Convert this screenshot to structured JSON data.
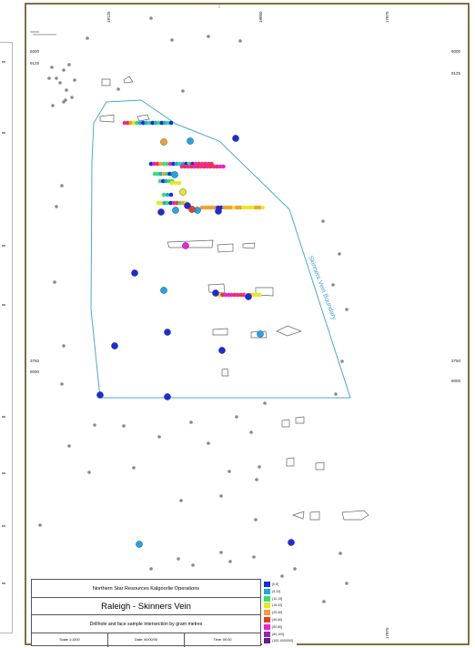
{
  "map": {
    "title_block": {
      "company": "Northern Star Resources Kalgoorlie Operations",
      "title": "Raleigh - Skinners Vein",
      "subtitle": "Drillhole and face sample intersection by gram metres",
      "scale": "Scale 1:1000",
      "date": "Date: 00/00/00",
      "time": "Time: 00:00"
    },
    "boundary_label": "Skinners Vein Boundary",
    "grid_labels": {
      "left_9125": "9125",
      "right_9125": "9125",
      "left_9000": "9000",
      "right_9000": "9000",
      "left_3750": "3750",
      "right_3750": "3750",
      "left_6000": "6000",
      "right_6000": "6000",
      "top_18125": "18125",
      "top_18000": "18000",
      "top_17875": "17875",
      "bottom_17875": "17875"
    },
    "legend": [
      {
        "label": "[0,5]",
        "color": "#1a2be0"
      },
      {
        "label": "(5,10]",
        "color": "#1fa6e8"
      },
      {
        "label": "(10,15]",
        "color": "#38e06a"
      },
      {
        "label": "(15,20]",
        "color": "#e8e81f"
      },
      {
        "label": "(20,40]",
        "color": "#f0a030"
      },
      {
        "label": "(40,60]",
        "color": "#f03a20"
      },
      {
        "label": "(60,80]",
        "color": "#f01fd0"
      },
      {
        "label": "(80,100]",
        "color": "#a020b0"
      },
      {
        "label": "(100,1000000]",
        "color": "#602080"
      }
    ]
  }
}
